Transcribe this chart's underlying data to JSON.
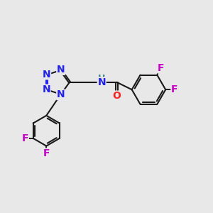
{
  "bg_color": "#e8e8e8",
  "bond_color": "#1a1a1a",
  "N_color": "#2020ff",
  "O_color": "#ff2020",
  "F_color": "#cc00cc",
  "H_color": "#408080",
  "bond_width": 1.5,
  "font_size_atom": 10,
  "layout": {
    "xlim": [
      0,
      10
    ],
    "ylim": [
      0,
      10
    ]
  }
}
